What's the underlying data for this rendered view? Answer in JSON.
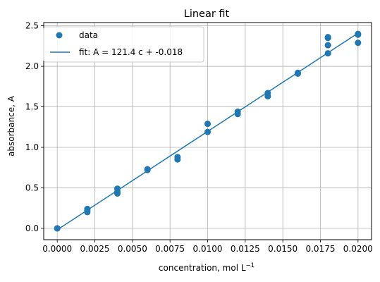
{
  "chart_data": {
    "type": "scatter",
    "title": "Linear fit",
    "xlabel": "concentration, mol L",
    "xlabel_superscript": "−1",
    "ylabel": "absorbance, A",
    "xlim": [
      -0.0009,
      0.0209
    ],
    "ylim": [
      -0.14,
      2.54
    ],
    "xticks": [
      0.0,
      0.0025,
      0.005,
      0.0075,
      0.01,
      0.0125,
      0.015,
      0.0175,
      0.02
    ],
    "xtick_labels": [
      "0.0000",
      "0.0025",
      "0.0050",
      "0.0075",
      "0.0100",
      "0.0125",
      "0.0150",
      "0.0175",
      "0.0200"
    ],
    "yticks": [
      0.0,
      0.5,
      1.0,
      1.5,
      2.0,
      2.5
    ],
    "ytick_labels": [
      "0.0",
      "0.5",
      "1.0",
      "1.5",
      "2.0",
      "2.5"
    ],
    "grid": true,
    "legend_position": "top-left",
    "series": [
      {
        "name": "data",
        "kind": "scatter",
        "color": "#1f77b4",
        "x": [
          0.0,
          0.0,
          0.002,
          0.002,
          0.002,
          0.004,
          0.004,
          0.004,
          0.006,
          0.006,
          0.008,
          0.008,
          0.01,
          0.01,
          0.012,
          0.012,
          0.014,
          0.014,
          0.016,
          0.016,
          0.018,
          0.018,
          0.018,
          0.018,
          0.02,
          0.02,
          0.02
        ],
        "y": [
          0.0,
          0.0,
          0.2,
          0.22,
          0.24,
          0.43,
          0.45,
          0.49,
          0.72,
          0.73,
          0.85,
          0.88,
          1.19,
          1.29,
          1.41,
          1.44,
          1.63,
          1.67,
          1.91,
          1.92,
          2.16,
          2.26,
          2.35,
          2.36,
          2.29,
          2.39,
          2.4
        ]
      },
      {
        "name": "fit: A = 121.4 c + -0.018",
        "kind": "line",
        "color": "#1f77b4",
        "x": [
          0.0,
          0.02
        ],
        "y": [
          -0.018,
          2.41
        ]
      }
    ]
  }
}
